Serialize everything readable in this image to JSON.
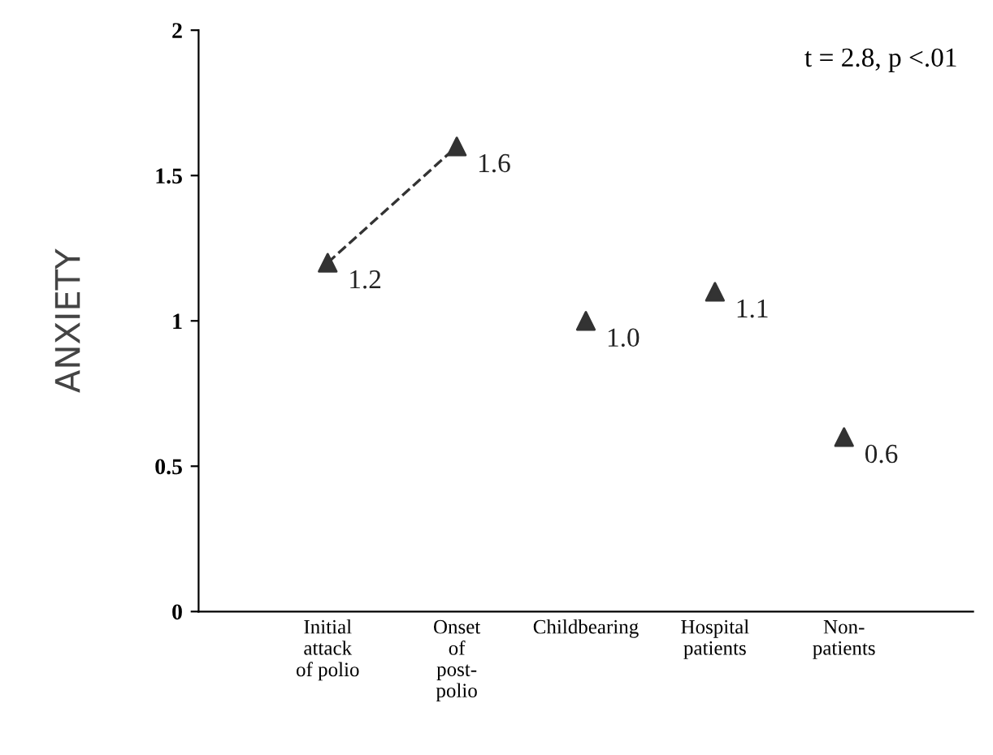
{
  "chart_data": {
    "type": "scatter",
    "ylabel": "ANXIETY",
    "categories": [
      "Initial\nattack\nof polio",
      "Onset\nof\npost-\npolio",
      "Childbearing",
      "Hospital\npatients",
      "Non-\npatients"
    ],
    "series": [
      {
        "type": "line",
        "color": "#333333",
        "values": [
          1.2,
          1.6,
          null,
          null,
          null
        ],
        "line_style": "dashed",
        "marker": "none"
      },
      {
        "color": "#333333",
        "values": [
          1.2,
          1.6,
          1.0,
          1.1,
          0.6
        ],
        "value_labels": [
          "1.2",
          "1.6",
          "1.0",
          "1.1",
          "0.6"
        ],
        "marker": "triangle"
      }
    ],
    "ylim": [
      0,
      2
    ],
    "yticks": [
      0,
      0.5,
      1,
      1.5,
      2
    ],
    "annotations": [
      "t = 2.8, p <.01"
    ],
    "grid": false,
    "legend": false
  }
}
